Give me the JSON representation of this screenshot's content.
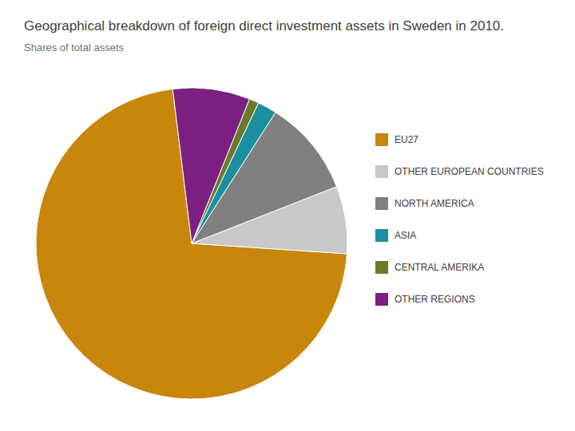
{
  "chart_data": {
    "type": "pie",
    "title": "Geographical breakdown of foreign direct investment assets in Sweden in 2010.",
    "subtitle": "Shares of total assets",
    "categories": [
      "EU27",
      "OTHER EUROPEAN COUNTRIES",
      "NORTH AMERICA",
      "ASIA",
      "CENTRAL AMERIKA",
      "OTHER REGIONS"
    ],
    "values": [
      72.0,
      7.0,
      10.0,
      2.0,
      1.0,
      8.0
    ],
    "colors": [
      "#C8860A",
      "#C8C8C8",
      "#808080",
      "#1A8FA0",
      "#6B7A2A",
      "#7B2080"
    ],
    "legend": "right"
  }
}
